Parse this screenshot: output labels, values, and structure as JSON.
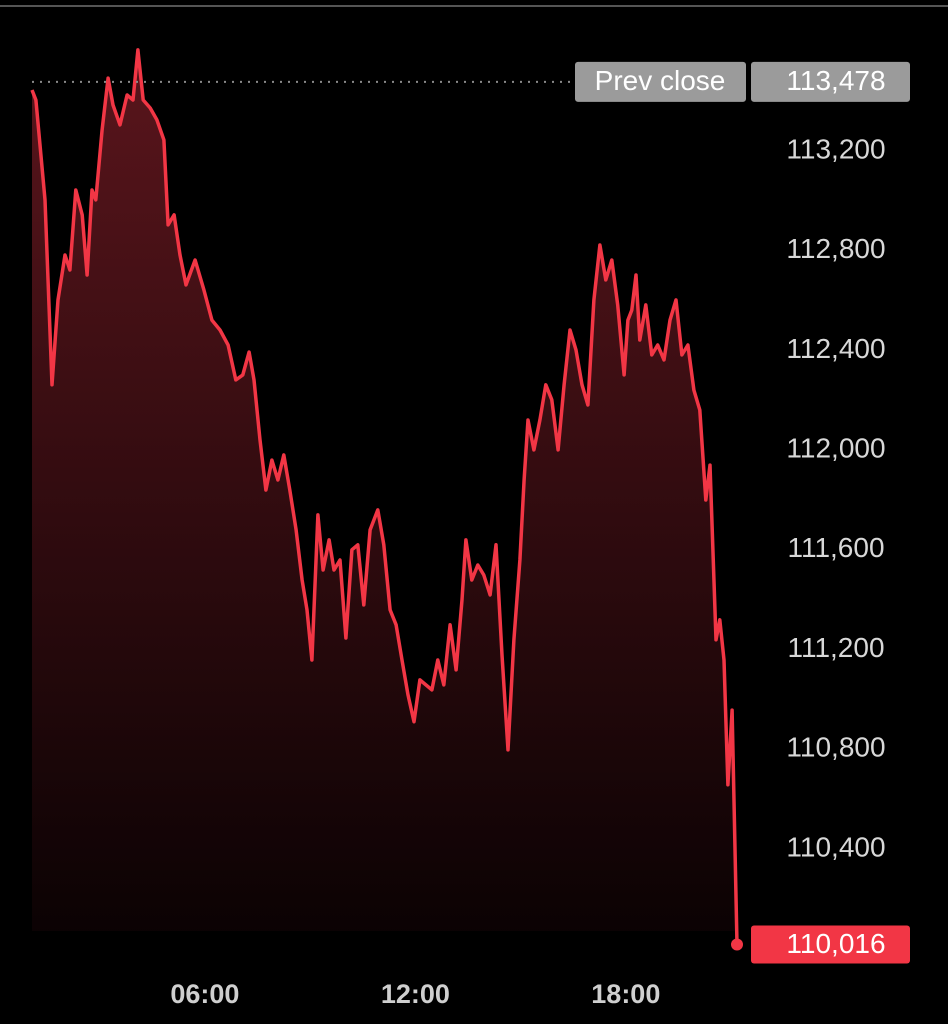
{
  "chart_data": {
    "type": "line",
    "x": [
      1.07,
      1.18,
      1.44,
      1.64,
      1.81,
      2.01,
      2.15,
      2.32,
      2.5,
      2.64,
      2.78,
      2.89,
      3.07,
      3.24,
      3.38,
      3.58,
      3.78,
      3.95,
      4.09,
      4.24,
      4.44,
      4.63,
      4.83,
      4.95,
      5.12,
      5.29,
      5.46,
      5.72,
      5.97,
      6.2,
      6.43,
      6.66,
      6.88,
      7.08,
      7.26,
      7.4,
      7.57,
      7.74,
      7.91,
      8.08,
      8.25,
      8.42,
      8.6,
      8.77,
      8.91,
      9.05,
      9.22,
      9.37,
      9.54,
      9.68,
      9.85,
      10.02,
      10.19,
      10.36,
      10.53,
      10.71,
      10.93,
      11.1,
      11.28,
      11.45,
      11.62,
      11.79,
      11.96,
      12.13,
      12.3,
      12.47,
      12.64,
      12.81,
      12.99,
      13.16,
      13.33,
      13.44,
      13.61,
      13.78,
      13.95,
      14.13,
      14.3,
      14.47,
      14.64,
      14.81,
      14.98,
      15.1,
      15.21,
      15.38,
      15.55,
      15.72,
      15.89,
      16.07,
      16.24,
      16.41,
      16.58,
      16.75,
      16.92,
      17.09,
      17.26,
      17.43,
      17.6,
      17.77,
      17.95,
      18.06,
      18.17,
      18.29,
      18.4,
      18.57,
      18.74,
      18.91,
      19.09,
      19.26,
      19.43,
      19.6,
      19.77,
      19.94,
      20.11,
      20.28,
      20.4,
      20.57,
      20.68,
      20.8,
      20.91,
      21.03,
      21.17
    ],
    "series": [
      {
        "color": "#f23645",
        "values": [
          113445,
          113405,
          113004,
          112262,
          112603,
          112783,
          112723,
          113044,
          112944,
          112703,
          113044,
          113004,
          113285,
          113493,
          113385,
          113305,
          113425,
          113405,
          113606,
          113405,
          113373,
          113325,
          113245,
          112904,
          112944,
          112783,
          112663,
          112763,
          112643,
          112522,
          112482,
          112422,
          112282,
          112302,
          112394,
          112282,
          112041,
          111840,
          111960,
          111880,
          111981,
          111840,
          111680,
          111479,
          111359,
          111158,
          111740,
          111519,
          111640,
          111519,
          111559,
          111246,
          111600,
          111620,
          111379,
          111680,
          111760,
          111620,
          111359,
          111299,
          111158,
          111018,
          110910,
          111078,
          111058,
          111038,
          111158,
          111058,
          111299,
          111118,
          111399,
          111640,
          111479,
          111539,
          111499,
          111419,
          111620,
          111178,
          110797,
          111239,
          111559,
          111880,
          112121,
          112001,
          112121,
          112262,
          112202,
          112001,
          112262,
          112482,
          112402,
          112262,
          112181,
          112603,
          112823,
          112683,
          112763,
          112583,
          112302,
          112522,
          112562,
          112703,
          112442,
          112583,
          112382,
          112422,
          112362,
          112522,
          112603,
          112382,
          112422,
          112241,
          112161,
          111800,
          111940,
          111239,
          111319,
          111158,
          110657,
          110957,
          110016
        ]
      }
    ],
    "xlim": [
      1.07,
      21.17
    ],
    "xticks": [
      {
        "value": 6,
        "label": "06:00"
      },
      {
        "value": 12,
        "label": "12:00"
      },
      {
        "value": 18,
        "label": "18:00"
      }
    ],
    "ylim": [
      109950,
      113700
    ],
    "yticks": [
      {
        "value": 110400,
        "label": "110,400"
      },
      {
        "value": 110800,
        "label": "110,800"
      },
      {
        "value": 111200,
        "label": "111,200"
      },
      {
        "value": 111600,
        "label": "111,600"
      },
      {
        "value": 112000,
        "label": "112,000"
      },
      {
        "value": 112400,
        "label": "112,400"
      },
      {
        "value": 112800,
        "label": "112,800"
      },
      {
        "value": 113200,
        "label": "113,200"
      }
    ],
    "prev_close": {
      "text": "Prev close",
      "value": 113478,
      "label": "113,478"
    },
    "last_price": {
      "value": 110016,
      "label": "110,016"
    }
  }
}
